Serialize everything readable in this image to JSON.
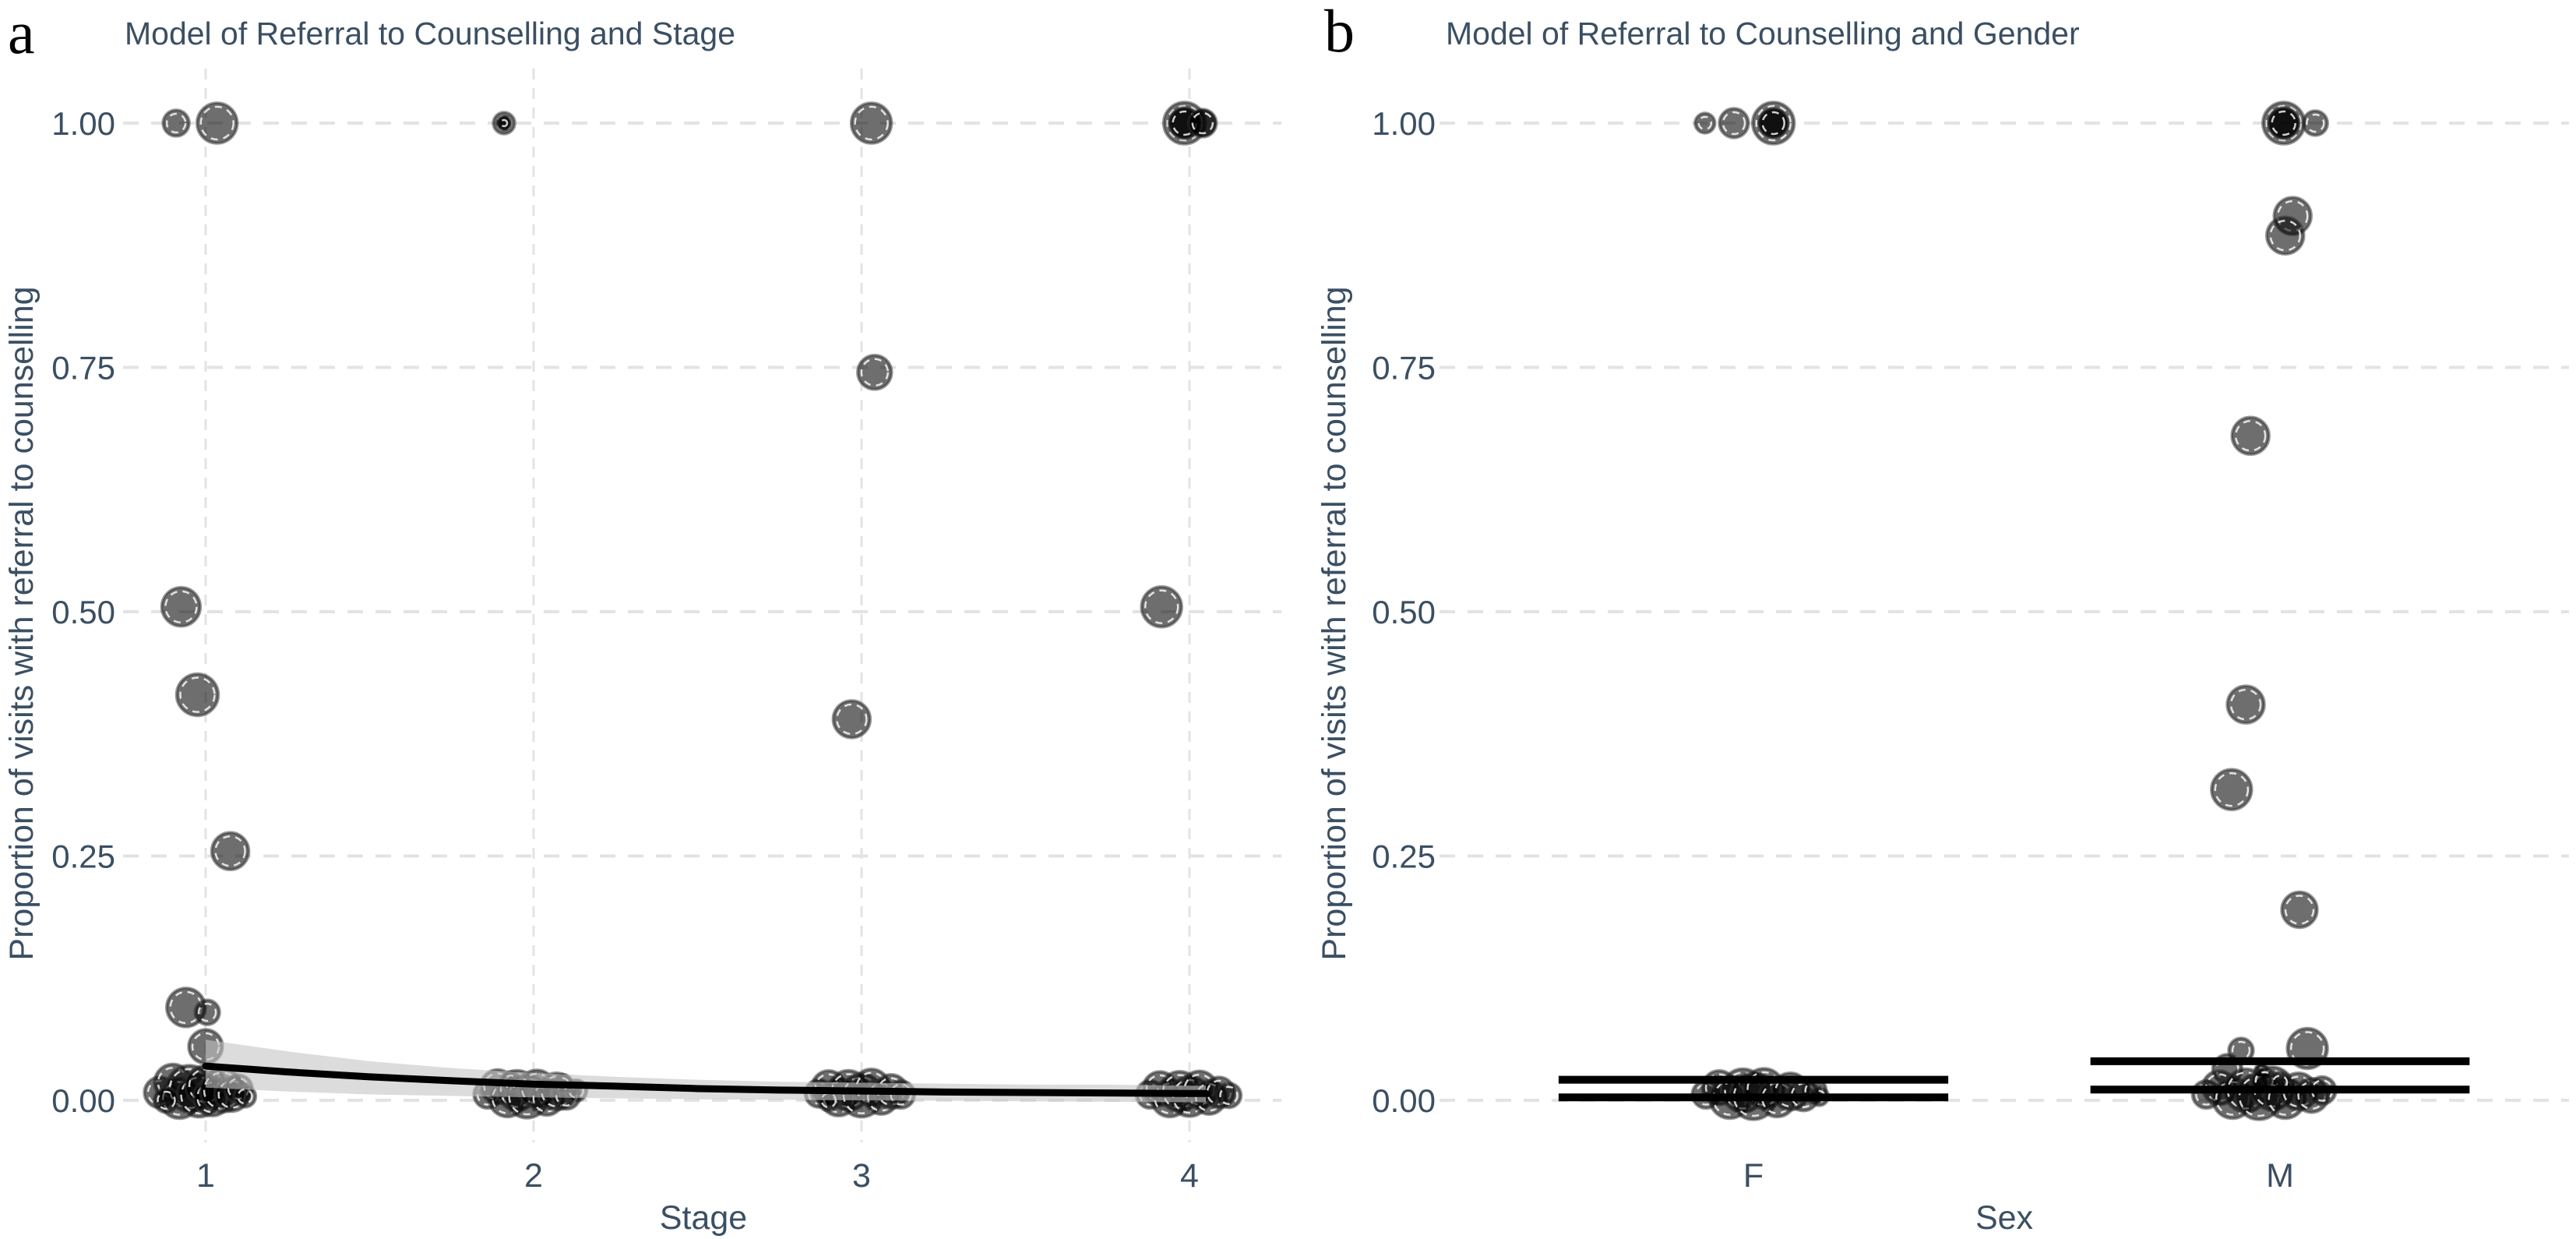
{
  "colors": {
    "text": "#3b4f63",
    "grid": "#e3e3e3",
    "point": "#000000",
    "point_rim": "#303030",
    "point_ring": "#ffffff",
    "ribbon": "#c4c4c4",
    "trend": "#000000",
    "interval_bar": "#000000",
    "background": "#ffffff"
  },
  "point_format": [
    "x_position_in_category_units",
    "proportion_value",
    "radius_px",
    "shade_g_gray_d_dark"
  ],
  "chart_data": [
    {
      "type": "scatter",
      "panel_label": "a",
      "title": "Model of Referral to Counselling and Stage",
      "xlabel": "Stage",
      "ylabel": "Proportion of visits with referral to counselling",
      "x_categories": [
        "1",
        "2",
        "3",
        "4"
      ],
      "yticks": [
        "1.00",
        "0.75",
        "0.50",
        "0.25",
        "0.00"
      ],
      "ylim": [
        0,
        1
      ],
      "grid": "dashed horizontal and vertical",
      "legend": "none",
      "points": [
        [
          0.91,
          1.0,
          17,
          "g"
        ],
        [
          1.035,
          1.0,
          26,
          "g"
        ],
        [
          0.925,
          0.505,
          25,
          "g"
        ],
        [
          0.975,
          0.415,
          27,
          "g"
        ],
        [
          1.075,
          0.255,
          24,
          "g"
        ],
        [
          0.94,
          0.095,
          25,
          "g"
        ],
        [
          1.005,
          0.09,
          16,
          "g"
        ],
        [
          1.0,
          0.055,
          22,
          "g"
        ],
        [
          1.91,
          1.0,
          14,
          "g"
        ],
        [
          1.91,
          1.0,
          9,
          "d"
        ],
        [
          3.03,
          1.0,
          26,
          "g"
        ],
        [
          3.04,
          0.745,
          22,
          "g"
        ],
        [
          2.97,
          0.39,
          24,
          "g"
        ],
        [
          3.985,
          1.0,
          27,
          "g"
        ],
        [
          3.985,
          1.0,
          20,
          "d"
        ],
        [
          4.04,
          1.0,
          18,
          "d"
        ],
        [
          3.915,
          0.505,
          26,
          "g"
        ],
        [
          0.86,
          0.008,
          20,
          "g"
        ],
        [
          0.9,
          0.018,
          24,
          "g"
        ],
        [
          0.92,
          0.002,
          26,
          "g"
        ],
        [
          0.95,
          0.012,
          30,
          "g"
        ],
        [
          0.98,
          0.005,
          28,
          "g"
        ],
        [
          1.0,
          0.015,
          26,
          "g"
        ],
        [
          1.02,
          0.003,
          24,
          "g"
        ],
        [
          1.05,
          0.01,
          28,
          "g"
        ],
        [
          1.08,
          0.006,
          22,
          "g"
        ],
        [
          1.1,
          0.012,
          18,
          "g"
        ],
        [
          0.88,
          0.0,
          16,
          "g"
        ],
        [
          1.12,
          0.004,
          14,
          "g"
        ],
        [
          1.86,
          0.006,
          18,
          "g"
        ],
        [
          1.89,
          0.014,
          22,
          "g"
        ],
        [
          1.92,
          0.002,
          24,
          "g"
        ],
        [
          1.95,
          0.01,
          26,
          "g"
        ],
        [
          1.98,
          0.004,
          28,
          "g"
        ],
        [
          2.01,
          0.012,
          24,
          "g"
        ],
        [
          2.04,
          0.002,
          22,
          "g"
        ],
        [
          2.07,
          0.009,
          24,
          "g"
        ],
        [
          2.1,
          0.005,
          18,
          "g"
        ],
        [
          2.13,
          0.01,
          14,
          "g"
        ],
        [
          1.93,
          0.019,
          13,
          "g"
        ],
        [
          2.09,
          0.017,
          12,
          "g"
        ],
        [
          2.87,
          0.007,
          18,
          "g"
        ],
        [
          2.9,
          0.013,
          22,
          "g"
        ],
        [
          2.93,
          0.003,
          24,
          "g"
        ],
        [
          2.96,
          0.01,
          26,
          "g"
        ],
        [
          3.0,
          0.005,
          28,
          "g"
        ],
        [
          3.03,
          0.013,
          24,
          "g"
        ],
        [
          3.06,
          0.003,
          22,
          "g"
        ],
        [
          3.09,
          0.009,
          22,
          "g"
        ],
        [
          3.12,
          0.006,
          18,
          "g"
        ],
        [
          2.9,
          0.0,
          14,
          "g"
        ],
        [
          3.88,
          0.006,
          18,
          "g"
        ],
        [
          3.91,
          0.012,
          22,
          "g"
        ],
        [
          3.94,
          0.002,
          24,
          "g"
        ],
        [
          3.97,
          0.009,
          26,
          "g"
        ],
        [
          4.0,
          0.004,
          26,
          "g"
        ],
        [
          4.03,
          0.011,
          24,
          "g"
        ],
        [
          4.06,
          0.003,
          22,
          "g"
        ],
        [
          4.09,
          0.008,
          20,
          "g"
        ],
        [
          4.12,
          0.005,
          16,
          "g"
        ]
      ],
      "trend": {
        "x": [
          1,
          1.25,
          1.5,
          1.75,
          2,
          2.25,
          2.5,
          2.75,
          3,
          3.25,
          3.5,
          3.75,
          4,
          4.05
        ],
        "y": [
          0.035,
          0.029,
          0.024,
          0.02,
          0.0165,
          0.0145,
          0.012,
          0.0105,
          0.0095,
          0.0085,
          0.008,
          0.0075,
          0.007,
          0.007
        ]
      },
      "ribbon": {
        "x": [
          1,
          1.25,
          1.5,
          1.75,
          2,
          2.25,
          2.5,
          2.75,
          3,
          3.25,
          3.5,
          3.75,
          4,
          4.05
        ],
        "upper": [
          0.062,
          0.05,
          0.04,
          0.033,
          0.028,
          0.024,
          0.021,
          0.019,
          0.018,
          0.017,
          0.016,
          0.016,
          0.015,
          0.015
        ],
        "lower": [
          0.013,
          0.009,
          0.006,
          0.0045,
          0.003,
          0.002,
          0.001,
          0.0005,
          0.0,
          -0.0005,
          -0.001,
          -0.0015,
          -0.002,
          -0.002
        ]
      }
    },
    {
      "type": "scatter",
      "panel_label": "b",
      "title": "Model of Referral to Counselling and Gender",
      "xlabel": "Sex",
      "ylabel": "Proportion of visits with referral to counselling",
      "x_categories": [
        "F",
        "M"
      ],
      "yticks": [
        "1.00",
        "0.75",
        "0.50",
        "0.25",
        "0.00"
      ],
      "ylim": [
        0,
        1
      ],
      "grid": "dashed horizontal only",
      "legend": "none",
      "points": [
        [
          0.908,
          1.0,
          13,
          "g"
        ],
        [
          0.963,
          1.0,
          19,
          "g"
        ],
        [
          1.038,
          1.0,
          27,
          "g"
        ],
        [
          1.038,
          1.0,
          19,
          "d"
        ],
        [
          2.007,
          1.0,
          27,
          "g"
        ],
        [
          2.007,
          1.0,
          20,
          "d"
        ],
        [
          2.067,
          1.0,
          16,
          "g"
        ],
        [
          2.024,
          0.905,
          24,
          "g"
        ],
        [
          2.01,
          0.885,
          24,
          "g"
        ],
        [
          1.944,
          0.68,
          24,
          "g"
        ],
        [
          1.935,
          0.405,
          24,
          "g"
        ],
        [
          1.908,
          0.318,
          26,
          "g"
        ],
        [
          2.037,
          0.195,
          23,
          "g"
        ],
        [
          1.926,
          0.051,
          16,
          "g"
        ],
        [
          2.052,
          0.053,
          26,
          "g"
        ],
        [
          1.9,
          0.032,
          19,
          "g"
        ],
        [
          1.965,
          0.03,
          9,
          "d"
        ],
        [
          0.91,
          0.006,
          18,
          "g"
        ],
        [
          0.935,
          0.013,
          22,
          "g"
        ],
        [
          0.955,
          0.002,
          26,
          "g"
        ],
        [
          0.98,
          0.01,
          28,
          "g"
        ],
        [
          1.0,
          0.004,
          30,
          "g"
        ],
        [
          1.02,
          0.012,
          26,
          "g"
        ],
        [
          1.045,
          0.002,
          24,
          "g"
        ],
        [
          1.07,
          0.009,
          24,
          "g"
        ],
        [
          1.095,
          0.005,
          20,
          "g"
        ],
        [
          1.115,
          0.01,
          16,
          "g"
        ],
        [
          1.125,
          0.004,
          12,
          "g"
        ],
        [
          1.86,
          0.006,
          18,
          "g"
        ],
        [
          1.885,
          0.013,
          22,
          "g"
        ],
        [
          1.91,
          0.002,
          26,
          "g"
        ],
        [
          1.935,
          0.01,
          28,
          "g"
        ],
        [
          1.96,
          0.004,
          30,
          "g"
        ],
        [
          1.985,
          0.012,
          28,
          "g"
        ],
        [
          2.01,
          0.002,
          26,
          "g"
        ],
        [
          2.035,
          0.009,
          24,
          "g"
        ],
        [
          2.06,
          0.005,
          22,
          "g"
        ],
        [
          2.08,
          0.01,
          18,
          "g"
        ],
        [
          1.97,
          0.02,
          16,
          "g"
        ],
        [
          2.0,
          0.018,
          14,
          "g"
        ]
      ],
      "interval_bars": [
        {
          "category": "F",
          "low": 0.003,
          "high": 0.021,
          "halfwidth": 0.37
        },
        {
          "category": "M",
          "low": 0.011,
          "high": 0.04,
          "halfwidth": 0.36
        }
      ]
    }
  ]
}
